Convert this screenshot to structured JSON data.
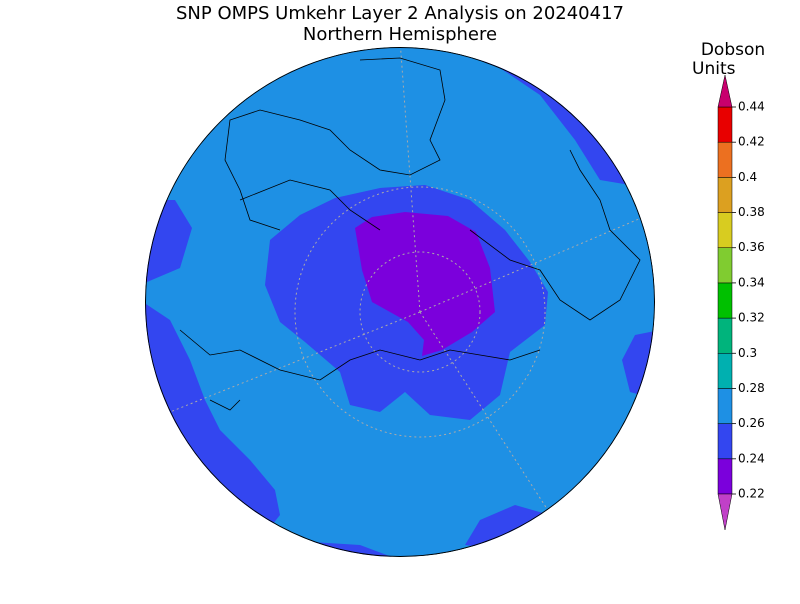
{
  "title": "SNP OMPS Umkehr Layer 2 Analysis on 20240417",
  "subtitle": "Northern Hemisphere",
  "colorbar": {
    "title_lines": [
      "Dobson",
      "Units"
    ],
    "ticks": [
      0.22,
      0.24,
      0.26,
      0.28,
      0.3,
      0.32,
      0.34,
      0.36,
      0.38,
      0.4,
      0.42,
      0.44
    ],
    "lim": [
      0.22,
      0.44
    ],
    "colors": [
      "#7b00dc",
      "#3346f0",
      "#1e90e4",
      "#00b0b0",
      "#00b47c",
      "#00c000",
      "#80cc30",
      "#d8cc20",
      "#dca020",
      "#ec7020",
      "#e80000"
    ],
    "under_color": "#c040c8",
    "over_color": "#c8006e"
  }
}
